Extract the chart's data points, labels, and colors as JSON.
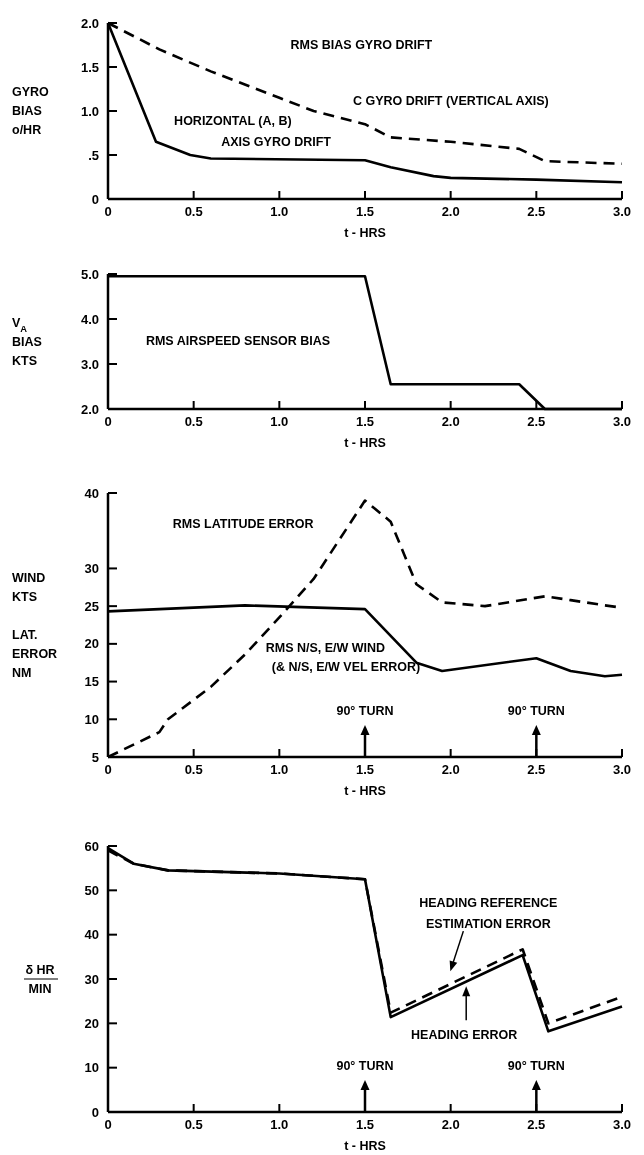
{
  "chart_data": [
    {
      "type": "line",
      "xlabel": "t - HRS",
      "ylabel": "GYRO\nBIAS\no/HR",
      "xlim": [
        0,
        3
      ],
      "xticks": [
        0,
        0.5,
        {
          "value": 1,
          "label": "1.0"
        },
        1.5,
        {
          "value": 2,
          "label": "2.0"
        },
        2.5,
        {
          "value": 3,
          "label": "3.0"
        }
      ],
      "ylim": [
        0,
        2
      ],
      "yticks": [
        0,
        {
          "value": 0.5,
          "label": ".5"
        },
        {
          "value": 1,
          "label": "1.0"
        },
        1.5,
        {
          "value": 2,
          "label": "2.0"
        }
      ],
      "series": [
        {
          "color": "#000000",
          "line_style": "solid",
          "x": [
            0,
            0.28,
            0.48,
            0.6,
            1.5,
            1.65,
            1.9,
            2.0,
            2.5,
            3.0
          ],
          "values": [
            2.0,
            0.65,
            0.5,
            0.46,
            0.44,
            0.36,
            0.26,
            0.24,
            0.22,
            0.19
          ]
        },
        {
          "color": "#000000",
          "line_style": "dashed",
          "x": [
            0,
            0.3,
            0.6,
            1.0,
            1.2,
            1.5,
            1.65,
            2.0,
            2.4,
            2.55,
            3.0
          ],
          "values": [
            2.0,
            1.7,
            1.45,
            1.15,
            1.0,
            0.85,
            0.7,
            0.65,
            0.57,
            0.43,
            0.4
          ]
        }
      ],
      "annotations": [
        "RMS BIAS GYRO DRIFT",
        "C GYRO DRIFT (VERTICAL AXIS)",
        "HORIZONTAL (A, B)",
        "AXIS GYRO DRIFT"
      ]
    },
    {
      "type": "line",
      "xlabel": "t - HRS",
      "ylabel": "V$_{A}$\nBIAS\nKTS",
      "xlim": [
        0,
        3
      ],
      "xticks": [
        0,
        0.5,
        {
          "value": 1,
          "label": "1.0"
        },
        1.5,
        {
          "value": 2,
          "label": "2.0"
        },
        2.5,
        {
          "value": 3,
          "label": "3.0"
        }
      ],
      "ylim": [
        2,
        5
      ],
      "yticks": [
        {
          "value": 2,
          "label": "2.0"
        },
        {
          "value": 3,
          "label": "3.0"
        },
        {
          "value": 4,
          "label": "4.0"
        },
        {
          "value": 5,
          "label": "5.0"
        }
      ],
      "series": [
        {
          "color": "#000000",
          "line_style": "solid",
          "x": [
            0,
            1.5,
            1.65,
            2.4,
            2.55,
            3.0
          ],
          "values": [
            4.95,
            4.95,
            2.55,
            2.55,
            2.0,
            2.0
          ]
        }
      ],
      "annotations": [
        "RMS AIRSPEED SENSOR BIAS"
      ]
    },
    {
      "type": "line",
      "xlabel": "t - HRS",
      "ylabel": "WIND\nKTS\n\nLAT.\nERROR\nNM",
      "xlim": [
        0,
        3
      ],
      "xticks": [
        0,
        0.5,
        {
          "value": 1,
          "label": "1.0"
        },
        1.5,
        {
          "value": 2,
          "label": "2.0"
        },
        2.5,
        {
          "value": 3,
          "label": "3.0"
        }
      ],
      "ylim": [
        5,
        40
      ],
      "yticks": [
        5,
        10,
        15,
        20,
        25,
        30,
        40
      ],
      "series": [
        {
          "color": "#000000",
          "line_style": "solid",
          "x": [
            0,
            0.8,
            1.5,
            1.8,
            1.95,
            2.5,
            2.7,
            2.9,
            3.0
          ],
          "values": [
            24.3,
            25.1,
            24.6,
            17.5,
            16.4,
            18.1,
            16.4,
            15.7,
            15.9
          ]
        },
        {
          "color": "#000000",
          "line_style": "dashed",
          "x": [
            0,
            0.3,
            0.35,
            0.6,
            0.8,
            1.0,
            1.2,
            1.5,
            1.65,
            1.8,
            1.95,
            2.2,
            2.55,
            2.7,
            2.9,
            3.0
          ],
          "values": [
            5,
            8.3,
            10,
            14.3,
            18.6,
            23.5,
            28.6,
            39,
            36.2,
            27.9,
            25.5,
            25,
            26.3,
            25.8,
            25.1,
            24.8
          ]
        }
      ],
      "ref_lines": [
        {
          "axis": "x",
          "value": 1.5,
          "label": "90° TURN"
        },
        {
          "axis": "x",
          "value": 2.5,
          "label": "90° TURN"
        }
      ],
      "annotations": [
        "RMS LATITUDE ERROR",
        "RMS N/S, E/W WIND",
        "(& N/S, E/W VEL ERROR)"
      ]
    },
    {
      "type": "line",
      "xlabel": "t - HRS",
      "ylabel": "δ HR\nMIN",
      "xlim": [
        0,
        3
      ],
      "xticks": [
        0,
        0.5,
        {
          "value": 1,
          "label": "1.0"
        },
        1.5,
        {
          "value": 2,
          "label": "2.0"
        },
        2.5,
        {
          "value": 3,
          "label": "3.0"
        }
      ],
      "ylim": [
        0,
        60
      ],
      "yticks": [
        0,
        10,
        20,
        30,
        40,
        50,
        60
      ],
      "series": [
        {
          "color": "#000000",
          "line_style": "solid",
          "x": [
            0,
            0.15,
            0.35,
            1.0,
            1.5,
            1.65,
            2.42,
            2.57,
            3.0
          ],
          "values": [
            59.5,
            56,
            54.5,
            53.8,
            52.5,
            21.4,
            35.4,
            18.2,
            23.8
          ]
        },
        {
          "color": "#000000",
          "line_style": "dashed",
          "x": [
            0,
            0.15,
            0.35,
            1.0,
            1.5,
            1.65,
            2.42,
            2.57,
            3.0
          ],
          "values": [
            59,
            56,
            54.5,
            53.8,
            52.5,
            22.4,
            36.7,
            20,
            26
          ]
        }
      ],
      "ref_lines": [
        {
          "axis": "x",
          "value": 1.5,
          "label": "90° TURN"
        },
        {
          "axis": "x",
          "value": 2.5,
          "label": "90° TURN"
        }
      ],
      "annotations": [
        "HEADING REFERENCE",
        "ESTIMATION ERROR",
        "HEADING ERROR"
      ]
    }
  ]
}
